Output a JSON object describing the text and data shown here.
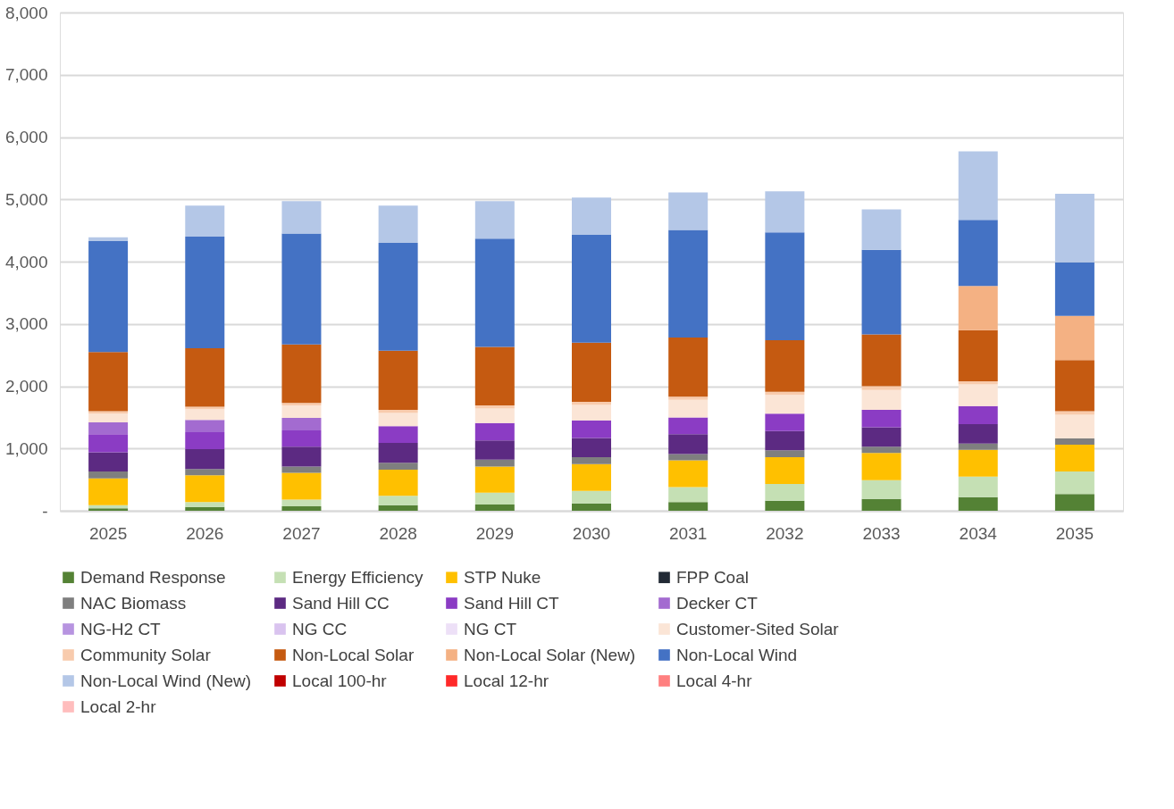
{
  "chart_data": {
    "type": "bar",
    "stacked": true,
    "categories": [
      "2025",
      "2026",
      "2027",
      "2028",
      "2029",
      "2030",
      "2031",
      "2032",
      "2033",
      "2034",
      "2035"
    ],
    "ylim": [
      0,
      8000
    ],
    "yticks": [
      {
        "value": 0,
        "label": "-"
      },
      {
        "value": 1000,
        "label": "1,000"
      },
      {
        "value": 2000,
        "label": "2,000"
      },
      {
        "value": 3000,
        "label": "3,000"
      },
      {
        "value": 4000,
        "label": "4,000"
      },
      {
        "value": 5000,
        "label": "5,000"
      },
      {
        "value": 6000,
        "label": "6,000"
      },
      {
        "value": 7000,
        "label": "7,000"
      },
      {
        "value": 8000,
        "label": "8,000"
      }
    ],
    "grid": "y",
    "legend": "bottom",
    "series": [
      {
        "name": "Demand Response",
        "color": "#548235",
        "values": [
          40,
          60,
          70,
          90,
          100,
          120,
          140,
          160,
          190,
          220,
          270
        ]
      },
      {
        "name": "Energy Efficiency",
        "color": "#c5e0b4",
        "values": [
          50,
          80,
          110,
          150,
          190,
          200,
          240,
          270,
          300,
          330,
          360
        ]
      },
      {
        "name": "STP Nuke",
        "color": "#ffc000",
        "values": [
          430,
          430,
          430,
          420,
          420,
          430,
          430,
          430,
          440,
          430,
          430
        ]
      },
      {
        "name": "FPP Coal",
        "color": "#222a35",
        "values": [
          null,
          null,
          null,
          null,
          null,
          null,
          null,
          null,
          null,
          null,
          null
        ]
      },
      {
        "name": "NAC Biomass",
        "color": "#7f7f7f",
        "values": [
          110,
          100,
          100,
          110,
          110,
          110,
          100,
          110,
          100,
          100,
          100
        ]
      },
      {
        "name": "Sand Hill CC",
        "color": "#5c2a82",
        "values": [
          310,
          320,
          320,
          320,
          310,
          310,
          320,
          310,
          310,
          310,
          null
        ]
      },
      {
        "name": "Sand Hill CT",
        "color": "#8b3cc4",
        "values": [
          290,
          270,
          260,
          270,
          280,
          280,
          270,
          280,
          280,
          290,
          null
        ]
      },
      {
        "name": "Decker CT",
        "color": "#a36bd0",
        "values": [
          190,
          200,
          200,
          null,
          null,
          null,
          null,
          null,
          null,
          null,
          null
        ]
      },
      {
        "name": "NG-H2 CT",
        "color": "#b794e0",
        "values": [
          null,
          null,
          null,
          null,
          null,
          null,
          null,
          null,
          null,
          null,
          null
        ]
      },
      {
        "name": "NG CC",
        "color": "#d9c3ef",
        "values": [
          null,
          null,
          null,
          null,
          null,
          null,
          null,
          null,
          null,
          null,
          null
        ]
      },
      {
        "name": "NG CT",
        "color": "#ede0f7",
        "values": [
          null,
          null,
          null,
          null,
          null,
          null,
          null,
          null,
          null,
          null,
          null
        ]
      },
      {
        "name": "Customer-Sited Solar",
        "color": "#fbe5d6",
        "values": [
          140,
          170,
          200,
          210,
          230,
          250,
          280,
          300,
          320,
          350,
          380
        ]
      },
      {
        "name": "Community Solar",
        "color": "#f8cbad",
        "values": [
          40,
          40,
          40,
          50,
          50,
          50,
          50,
          50,
          60,
          50,
          60
        ]
      },
      {
        "name": "Non-Local Solar",
        "color": "#c55a11",
        "values": [
          950,
          940,
          940,
          950,
          940,
          950,
          950,
          830,
          830,
          820,
          820
        ]
      },
      {
        "name": "Non-Local Solar (New)",
        "color": "#f4b183",
        "values": [
          null,
          null,
          null,
          null,
          null,
          null,
          null,
          null,
          null,
          710,
          710
        ]
      },
      {
        "name": "Non-Local Wind",
        "color": "#4472c4",
        "values": [
          1780,
          1790,
          1780,
          1730,
          1740,
          1730,
          1730,
          1730,
          1360,
          1060,
          860
        ]
      },
      {
        "name": "Non-Local Wind (New)",
        "color": "#b4c7e7",
        "values": [
          60,
          500,
          520,
          600,
          600,
          600,
          600,
          660,
          650,
          1100,
          1100
        ]
      },
      {
        "name": "Local 100-hr",
        "color": "#c00000",
        "values": [
          null,
          null,
          null,
          null,
          null,
          null,
          null,
          null,
          null,
          null,
          null
        ]
      },
      {
        "name": "Local 12-hr",
        "color": "#ff2929",
        "values": [
          null,
          null,
          null,
          null,
          null,
          null,
          null,
          null,
          null,
          null,
          null
        ]
      },
      {
        "name": "Local 4-hr",
        "color": "#ff8080",
        "values": [
          null,
          null,
          null,
          null,
          null,
          null,
          null,
          null,
          null,
          null,
          null
        ]
      },
      {
        "name": "Local 2-hr",
        "color": "#ffbdbd",
        "values": [
          null,
          null,
          null,
          null,
          null,
          null,
          null,
          null,
          null,
          null,
          null
        ]
      }
    ]
  }
}
